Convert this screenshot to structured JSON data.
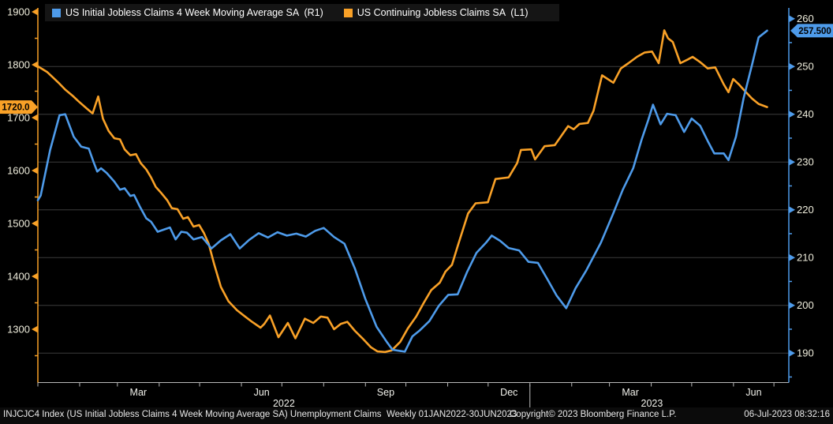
{
  "chart_data": {
    "type": "line",
    "title": "",
    "legend": [
      {
        "label": "US Initial Jobless Claims 4 Week Moving Average SA  (R1)",
        "series": "initial_claims_4wk_ma",
        "color": "#4e9bea"
      },
      {
        "label": "US Continuing Jobless Claims SA  (L1)",
        "series": "continuing_claims",
        "color": "#f9a127"
      }
    ],
    "left_axis": {
      "side": "left",
      "color": "#f9a127",
      "label_color": "#f0eedd",
      "tick_labels": [
        "1900",
        "1800",
        "1700",
        "1600",
        "1500",
        "1400",
        "1300"
      ],
      "tick_values": [
        1900,
        1800,
        1700,
        1600,
        1500,
        1400,
        1300
      ],
      "minor_tick_values": [
        1850,
        1750,
        1650,
        1550,
        1450,
        1350,
        1250
      ],
      "last_value_badge": "1720.0",
      "last_value": 1720.0
    },
    "right_axis": {
      "side": "right",
      "color": "#4e9bea",
      "label_color": "#f0eedd",
      "tick_labels": [
        "260",
        "250",
        "240",
        "230",
        "220",
        "210",
        "200",
        "190"
      ],
      "tick_values": [
        260,
        250,
        240,
        230,
        220,
        210,
        200,
        190
      ],
      "minor_tick_values": [
        255,
        245,
        235,
        225,
        215,
        205,
        195,
        185
      ],
      "gridline_values": [
        250,
        240,
        230,
        220,
        210,
        200,
        190
      ],
      "last_value_badge": "257.500",
      "last_value": 257.5
    },
    "x_axis": {
      "range_label": "01JAN2022-30JUN2023",
      "months_total": 18,
      "weeks_total": 78,
      "month_labels": [
        {
          "text": "Mar",
          "month_index": 2
        },
        {
          "text": "Jun",
          "month_index": 5
        },
        {
          "text": "Sep",
          "month_index": 8
        },
        {
          "text": "Dec",
          "month_index": 11
        },
        {
          "text": "Mar",
          "month_index": 14
        },
        {
          "text": "Jun",
          "month_index": 17
        }
      ],
      "year_labels": [
        {
          "text": "2022",
          "from_month": 0,
          "to_month": 12
        },
        {
          "text": "2023",
          "from_month": 12,
          "to_month": 18
        }
      ],
      "year_separator_month": 12
    },
    "series": [
      {
        "name": "US Continuing Jobless Claims SA  (L1)",
        "id": "continuing_claims",
        "axis": "left",
        "color": "#f9a127",
        "points": [
          [
            0,
            1797
          ],
          [
            1.0,
            1786
          ],
          [
            1.6,
            1776
          ],
          [
            2.3,
            1764
          ],
          [
            2.9,
            1753
          ],
          [
            3.7,
            1741
          ],
          [
            4.3,
            1731
          ],
          [
            5.2,
            1717
          ],
          [
            5.8,
            1708
          ],
          [
            6.4,
            1740
          ],
          [
            6.9,
            1698
          ],
          [
            7.5,
            1675
          ],
          [
            8.1,
            1661
          ],
          [
            8.7,
            1659
          ],
          [
            9.2,
            1640
          ],
          [
            9.8,
            1629
          ],
          [
            10.4,
            1631
          ],
          [
            10.9,
            1614
          ],
          [
            11.5,
            1602
          ],
          [
            12.0,
            1587
          ],
          [
            12.5,
            1569
          ],
          [
            13.1,
            1557
          ],
          [
            13.7,
            1544
          ],
          [
            14.2,
            1529
          ],
          [
            14.8,
            1527
          ],
          [
            15.4,
            1509
          ],
          [
            15.9,
            1512
          ],
          [
            16.5,
            1494
          ],
          [
            17.1,
            1497
          ],
          [
            17.6,
            1482
          ],
          [
            18.1,
            1462
          ],
          [
            18.7,
            1422
          ],
          [
            19.4,
            1380
          ],
          [
            20.2,
            1353
          ],
          [
            21.1,
            1336
          ],
          [
            21.9,
            1325
          ],
          [
            22.7,
            1314
          ],
          [
            23.6,
            1303
          ],
          [
            24.0,
            1310
          ],
          [
            24.6,
            1326
          ],
          [
            25.5,
            1285
          ],
          [
            26.5,
            1312
          ],
          [
            27.3,
            1283
          ],
          [
            28.3,
            1320
          ],
          [
            29.2,
            1312
          ],
          [
            30.0,
            1324
          ],
          [
            30.7,
            1322
          ],
          [
            31.4,
            1300
          ],
          [
            32.1,
            1310
          ],
          [
            32.8,
            1314
          ],
          [
            33.6,
            1297
          ],
          [
            34.4,
            1283
          ],
          [
            35.3,
            1266
          ],
          [
            36.0,
            1258
          ],
          [
            36.8,
            1257
          ],
          [
            37.5,
            1260
          ],
          [
            38.4,
            1276
          ],
          [
            39.2,
            1301
          ],
          [
            40.1,
            1324
          ],
          [
            40.9,
            1350
          ],
          [
            41.7,
            1374
          ],
          [
            42.6,
            1388
          ],
          [
            43.2,
            1409
          ],
          [
            43.9,
            1422
          ],
          [
            44.5,
            1457
          ],
          [
            45.6,
            1519
          ],
          [
            46.4,
            1538
          ],
          [
            47.7,
            1540
          ],
          [
            48.5,
            1584
          ],
          [
            49.9,
            1587
          ],
          [
            50.8,
            1614
          ],
          [
            51.2,
            1639
          ],
          [
            52.3,
            1640
          ],
          [
            52.7,
            1621
          ],
          [
            53.7,
            1646
          ],
          [
            54.8,
            1648
          ],
          [
            56.2,
            1684
          ],
          [
            56.8,
            1678
          ],
          [
            57.4,
            1688
          ],
          [
            58.3,
            1690
          ],
          [
            58.9,
            1713
          ],
          [
            59.8,
            1780
          ],
          [
            61.0,
            1766
          ],
          [
            61.8,
            1793
          ],
          [
            62.6,
            1803
          ],
          [
            63.5,
            1815
          ],
          [
            64.3,
            1823
          ],
          [
            65.1,
            1825
          ],
          [
            65.8,
            1803
          ],
          [
            66.4,
            1865
          ],
          [
            66.8,
            1850
          ],
          [
            67.3,
            1843
          ],
          [
            68.1,
            1803
          ],
          [
            68.9,
            1810
          ],
          [
            69.4,
            1815
          ],
          [
            70.2,
            1805
          ],
          [
            71.0,
            1793
          ],
          [
            71.8,
            1795
          ],
          [
            72.7,
            1763
          ],
          [
            73.2,
            1748
          ],
          [
            73.7,
            1773
          ],
          [
            74.3,
            1763
          ],
          [
            74.8,
            1753
          ],
          [
            75.7,
            1736
          ],
          [
            76.4,
            1726
          ],
          [
            77.3,
            1720
          ]
        ]
      },
      {
        "name": "US Initial Jobless Claims 4 Week Moving Average SA  (R1)",
        "id": "initial_claims_4wk_ma",
        "axis": "right",
        "color": "#4e9bea",
        "points": [
          [
            0,
            222.0
          ],
          [
            0.3,
            223.0
          ],
          [
            1.3,
            232.5
          ],
          [
            2.3,
            239.8
          ],
          [
            2.9,
            240.0
          ],
          [
            3.8,
            235.3
          ],
          [
            4.6,
            233.2
          ],
          [
            5.4,
            232.8
          ],
          [
            5.9,
            230.0
          ],
          [
            6.3,
            228.0
          ],
          [
            6.7,
            228.7
          ],
          [
            7.3,
            227.7
          ],
          [
            8.1,
            225.9
          ],
          [
            8.7,
            224.2
          ],
          [
            9.2,
            224.5
          ],
          [
            9.8,
            222.9
          ],
          [
            10.2,
            223.1
          ],
          [
            10.8,
            220.7
          ],
          [
            11.5,
            218.2
          ],
          [
            12.0,
            217.5
          ],
          [
            12.7,
            215.4
          ],
          [
            14.0,
            216.3
          ],
          [
            14.6,
            213.8
          ],
          [
            15.2,
            215.4
          ],
          [
            15.8,
            215.2
          ],
          [
            16.5,
            213.8
          ],
          [
            17.4,
            214.3
          ],
          [
            18.4,
            211.9
          ],
          [
            19.4,
            213.6
          ],
          [
            20.4,
            214.9
          ],
          [
            21.4,
            211.9
          ],
          [
            22.4,
            213.7
          ],
          [
            23.4,
            215.1
          ],
          [
            24.4,
            214.2
          ],
          [
            25.4,
            215.3
          ],
          [
            26.4,
            214.6
          ],
          [
            27.4,
            215.0
          ],
          [
            28.4,
            214.4
          ],
          [
            29.4,
            215.6
          ],
          [
            30.3,
            216.2
          ],
          [
            31.4,
            214.3
          ],
          [
            32.5,
            212.9
          ],
          [
            33.6,
            207.7
          ],
          [
            34.7,
            201.4
          ],
          [
            35.9,
            195.5
          ],
          [
            37.0,
            192.3
          ],
          [
            37.6,
            190.7
          ],
          [
            38.9,
            190.3
          ],
          [
            39.7,
            193.5
          ],
          [
            40.5,
            194.8
          ],
          [
            41.5,
            196.7
          ],
          [
            42.5,
            199.9
          ],
          [
            43.5,
            202.2
          ],
          [
            44.5,
            202.3
          ],
          [
            45.5,
            207.0
          ],
          [
            46.5,
            211.0
          ],
          [
            47.5,
            213.1
          ],
          [
            48.1,
            214.6
          ],
          [
            49.0,
            213.5
          ],
          [
            49.9,
            212.0
          ],
          [
            51.0,
            211.5
          ],
          [
            52.0,
            209.1
          ],
          [
            53.0,
            208.9
          ],
          [
            54.0,
            205.5
          ],
          [
            55.0,
            202.0
          ],
          [
            56.0,
            199.4
          ],
          [
            57.0,
            203.6
          ],
          [
            58.1,
            207.2
          ],
          [
            59.7,
            213.2
          ],
          [
            61.0,
            219.3
          ],
          [
            62.0,
            224.2
          ],
          [
            63.1,
            228.7
          ],
          [
            64.0,
            234.7
          ],
          [
            64.7,
            238.8
          ],
          [
            65.2,
            242.0
          ],
          [
            66.0,
            237.9
          ],
          [
            66.7,
            240.1
          ],
          [
            67.6,
            239.8
          ],
          [
            68.5,
            236.3
          ],
          [
            69.3,
            239.1
          ],
          [
            70.2,
            237.6
          ],
          [
            71.0,
            234.4
          ],
          [
            71.7,
            231.8
          ],
          [
            72.7,
            231.8
          ],
          [
            73.2,
            230.4
          ],
          [
            74.0,
            235.3
          ],
          [
            74.8,
            243.3
          ],
          [
            75.7,
            250.4
          ],
          [
            76.4,
            256.1
          ],
          [
            77.3,
            257.5
          ]
        ]
      }
    ],
    "style": {
      "background": "#000000",
      "gridline_color": "#3c3c3c",
      "x_axis_line_color": "#b8b8b8",
      "month_label_color": "#f2f2ec",
      "year_label_color": "#f2f2ec",
      "badge_text_color": "#000000"
    }
  },
  "footer": {
    "left": "INJCJC4 Index (US Initial Jobless Claims 4 Week Moving Average SA) Unemployment Claims  Weekly 01JAN2022-30JUN2023",
    "center": "Copyright© 2023 Bloomberg Finance L.P.",
    "right": "06-Jul-2023 08:32:16"
  }
}
